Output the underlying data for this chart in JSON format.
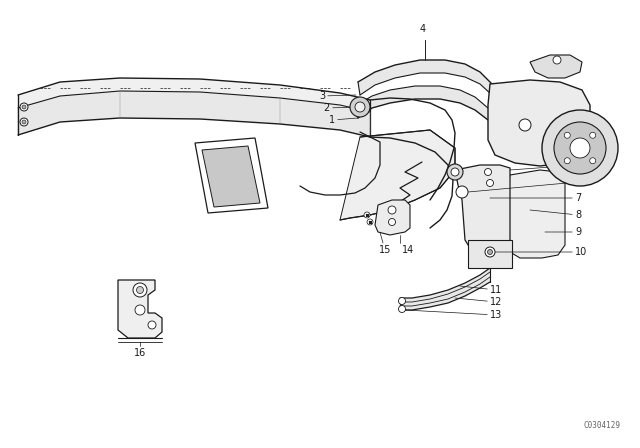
{
  "bg_color": "#ffffff",
  "line_color": "#1a1a1a",
  "fig_width": 6.4,
  "fig_height": 4.48,
  "dpi": 100,
  "watermark": "C0304129"
}
